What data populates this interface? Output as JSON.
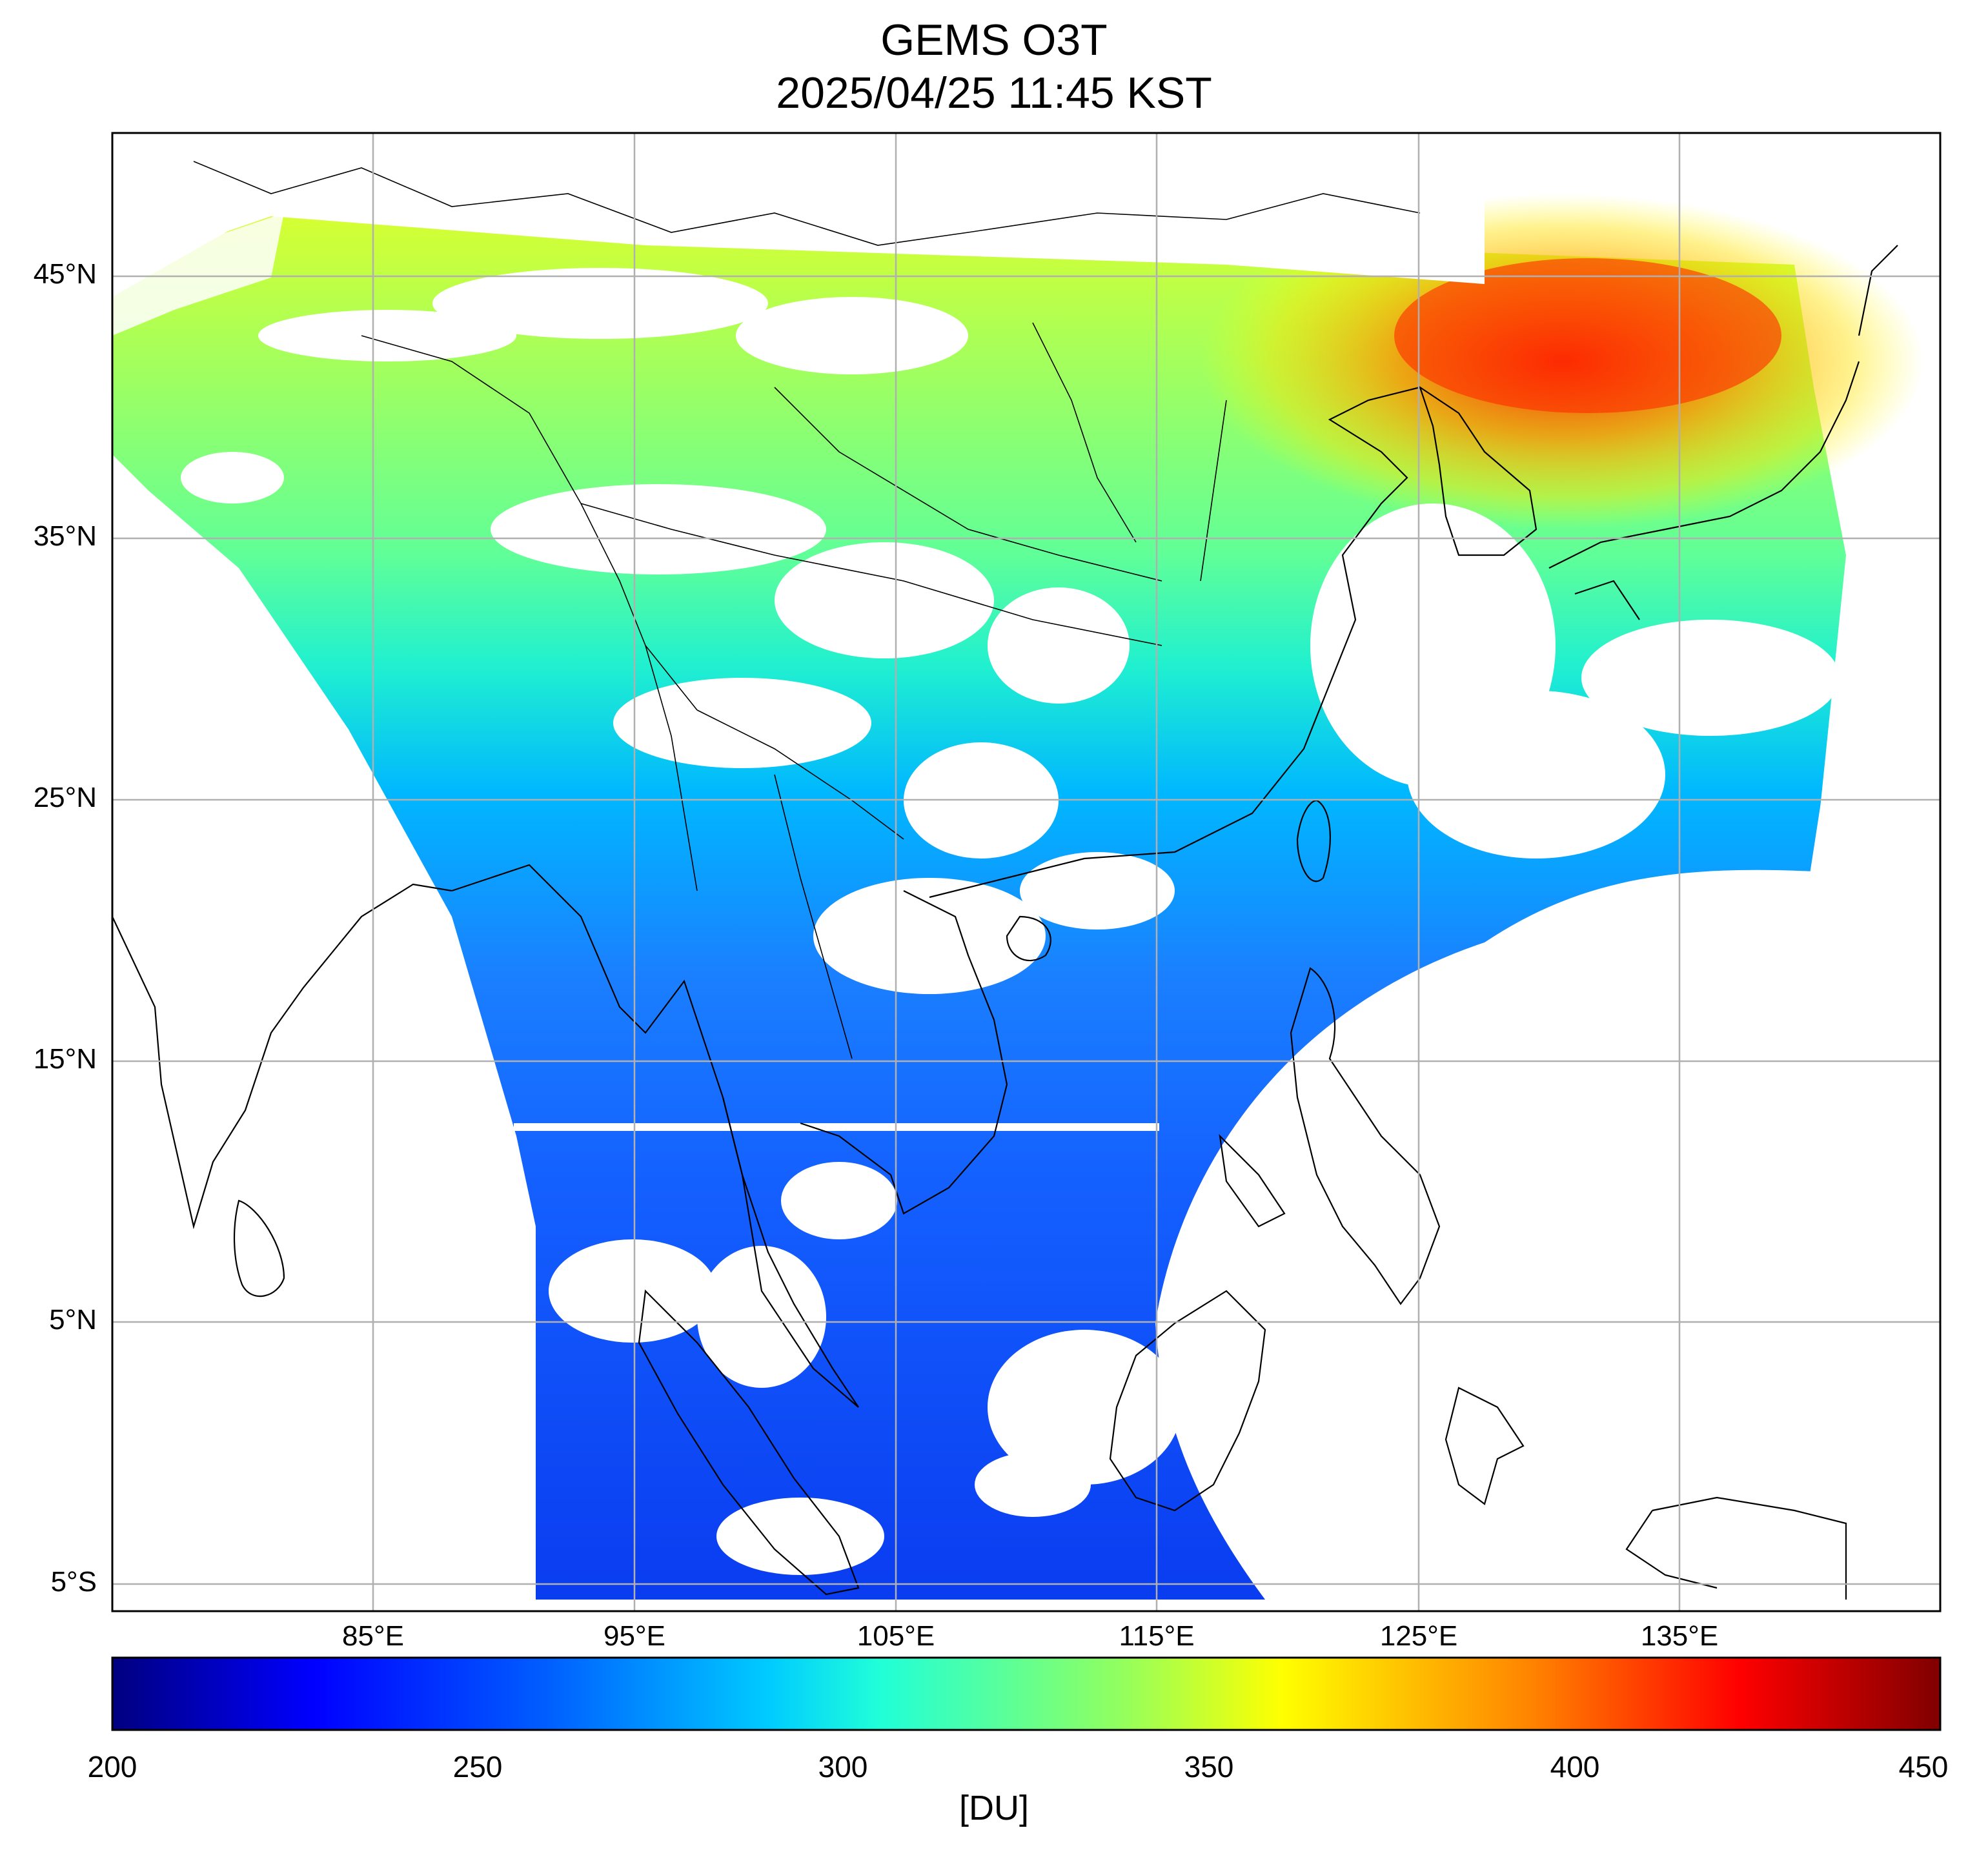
{
  "title": {
    "line1": "GEMS O3T",
    "line2": "2025/04/25 11:45 KST"
  },
  "map": {
    "lat_labels": [
      "45°N",
      "35°N",
      "25°N",
      "15°N",
      "5°N",
      "5°S"
    ],
    "lat_values": [
      45,
      35,
      25,
      15,
      5,
      -5
    ],
    "lon_labels": [
      "85°E",
      "95°E",
      "105°E",
      "115°E",
      "125°E",
      "135°E"
    ],
    "lon_values": [
      85,
      95,
      105,
      115,
      125,
      135
    ],
    "extent": {
      "lon_min": 75,
      "lon_max": 145,
      "lat_min": -6,
      "lat_max": 50.5
    },
    "grid": true,
    "field": "Total column ozone",
    "cloud_mask_color": "#ffffff"
  },
  "colorbar": {
    "min": 200,
    "max": 450,
    "ticks": [
      "200",
      "250",
      "300",
      "350",
      "400",
      "450"
    ],
    "units": "[DU]",
    "colormap": "jet",
    "colors": [
      "#000080",
      "#0000ff",
      "#0080ff",
      "#00e5e5",
      "#80ff80",
      "#ffff00",
      "#ff8000",
      "#ff0000",
      "#800000"
    ]
  }
}
